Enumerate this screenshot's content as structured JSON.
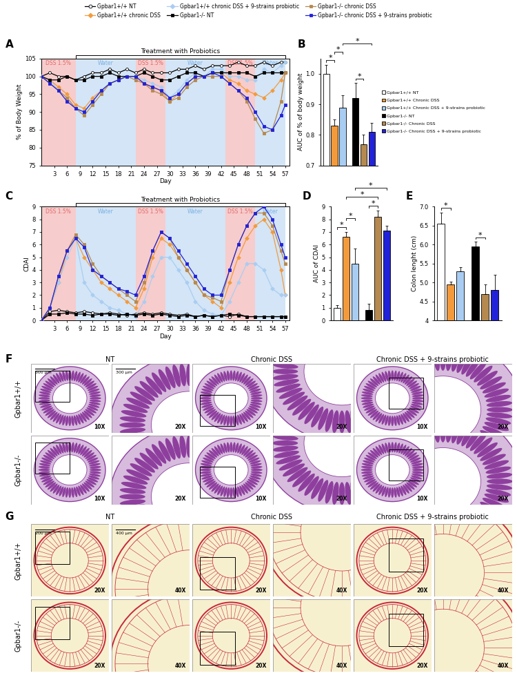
{
  "chart_data": [
    {
      "panel": "A",
      "type": "line",
      "xlabel": "Day",
      "ylabel": "% of Body Weight",
      "x": [
        0,
        2,
        4,
        6,
        8,
        10,
        12,
        14,
        16,
        18,
        20,
        22,
        24,
        26,
        28,
        30,
        32,
        34,
        36,
        38,
        40,
        42,
        44,
        46,
        48,
        50,
        52,
        54,
        56,
        57
      ],
      "xlim": [
        0,
        58
      ],
      "xticks": [
        3,
        6,
        9,
        12,
        15,
        18,
        21,
        24,
        27,
        30,
        33,
        36,
        39,
        42,
        45,
        48,
        51,
        54,
        57
      ],
      "ylim": [
        75,
        105
      ],
      "yticks": [
        75,
        80,
        85,
        90,
        95,
        100,
        105
      ],
      "legend": "top",
      "phases": [
        {
          "label": "DSS 1.5%",
          "start": 0,
          "end": 8,
          "color": "#f6cccc"
        },
        {
          "label": "Water",
          "start": 8,
          "end": 22,
          "color": "#d3e5f6"
        },
        {
          "label": "DSS 1.5%",
          "start": 22,
          "end": 29,
          "color": "#f6cccc"
        },
        {
          "label": "Water",
          "start": 29,
          "end": 43,
          "color": "#d3e5f6"
        },
        {
          "label": "DSS 1.5%",
          "start": 43,
          "end": 50,
          "color": "#f6cccc"
        },
        {
          "label": "Water",
          "start": 50,
          "end": 57,
          "color": "#d3e5f6"
        }
      ],
      "bracket": {
        "label": "Treatment with Probiotics",
        "start": 8,
        "end": 57
      },
      "series": [
        {
          "name": "Gpbar1+/+ NT",
          "color": "#ffffff",
          "marker": "circle",
          "values": [
            100,
            101,
            100,
            100,
            99,
            100,
            101,
            101,
            102,
            101,
            102,
            101,
            102,
            101,
            101,
            101,
            102,
            102,
            103,
            102,
            103,
            103,
            103,
            104,
            103,
            103,
            104,
            103,
            104,
            104
          ]
        },
        {
          "name": "Gpbar1+/+ chronic DSS",
          "color": "#f39a3c",
          "marker": "diamond",
          "values": [
            100,
            99,
            97,
            95,
            92,
            91,
            94,
            96,
            98,
            99,
            100,
            100,
            98,
            97,
            96,
            93,
            95,
            98,
            100,
            100,
            101,
            101,
            99,
            98,
            96,
            95,
            94,
            96,
            99,
            101
          ]
        },
        {
          "name": "Gpbar1+/+ chronic DSS + 9-strains probiotic",
          "color": "#a9cdf2",
          "marker": "diamond",
          "values": [
            100,
            99,
            96,
            94,
            91,
            90,
            93,
            96,
            98,
            99,
            100,
            100,
            99,
            98,
            97,
            94,
            96,
            99,
            101,
            100,
            102,
            102,
            100,
            100,
            99,
            99,
            102,
            101,
            103,
            104
          ]
        },
        {
          "name": "Gpbar1-/- NT",
          "color": "#000000",
          "marker": "square",
          "values": [
            100,
            99,
            99,
            100,
            99,
            99,
            100,
            100,
            101,
            100,
            100,
            100,
            101,
            100,
            99,
            99,
            100,
            101,
            101,
            100,
            101,
            101,
            101,
            101,
            101,
            100,
            101,
            101,
            101,
            101
          ]
        },
        {
          "name": "Gpbar1-/- chronic DSS",
          "color": "#b5894f",
          "marker": "square",
          "values": [
            100,
            98,
            96,
            94,
            91,
            89,
            92,
            95,
            98,
            99,
            100,
            99,
            98,
            96,
            95,
            93,
            94,
            97,
            99,
            100,
            100,
            100,
            98,
            96,
            93,
            88,
            84,
            85,
            93,
            101
          ]
        },
        {
          "name": "Gpbar1-/- chronic DSS + 9-strains probiotic",
          "color": "#2222d8",
          "marker": "square",
          "values": [
            100,
            98,
            96,
            93,
            91,
            90,
            93,
            96,
            98,
            99,
            100,
            100,
            98,
            97,
            96,
            94,
            95,
            98,
            100,
            100,
            101,
            100,
            98,
            96,
            94,
            90,
            86,
            85,
            89,
            92
          ]
        }
      ]
    },
    {
      "panel": "B",
      "type": "bar",
      "ylabel": "AUC of % of body weight",
      "categories": [
        "Gpbar1+/+ NT",
        "Gpbar1+/+ Chronic DSS",
        "Gpbar1+/+ Chronic DSS + 9-strains probiotic",
        "Gpbar1-/- NT",
        "Gpbar1-/- Chronic DSS",
        "Gpbar1-/- Chronic DSS + 9-strains probiotic"
      ],
      "values": [
        1.0,
        0.83,
        0.89,
        0.92,
        0.77,
        0.81
      ],
      "errors": [
        0.03,
        0.02,
        0.04,
        0.05,
        0.03,
        0.03
      ],
      "colors": [
        "#ffffff",
        "#f39a3c",
        "#a9cdf2",
        "#000000",
        "#b5894f",
        "#2222d8"
      ],
      "ylim": [
        0.7,
        1.05
      ],
      "yticks": [
        0.7,
        0.8,
        0.9,
        1.0
      ],
      "tick_labels": "y",
      "legend": "right",
      "significance": [
        {
          "between": [
            0,
            1
          ],
          "label": "*"
        },
        {
          "between": [
            1,
            2
          ],
          "label": "*"
        },
        {
          "between": [
            2,
            5
          ],
          "label": "*"
        },
        {
          "between": [
            3,
            4
          ],
          "label": "*"
        }
      ]
    },
    {
      "panel": "C",
      "type": "line",
      "xlabel": "Day",
      "ylabel": "CDAI",
      "x": [
        0,
        2,
        4,
        6,
        8,
        10,
        12,
        14,
        16,
        18,
        20,
        22,
        24,
        26,
        28,
        30,
        32,
        34,
        36,
        38,
        40,
        42,
        44,
        46,
        48,
        50,
        52,
        54,
        56,
        57
      ],
      "xlim": [
        0,
        58
      ],
      "xticks": [
        3,
        6,
        9,
        12,
        15,
        18,
        21,
        24,
        27,
        30,
        33,
        36,
        39,
        42,
        45,
        48,
        51,
        54,
        57
      ],
      "ylim": [
        0,
        9
      ],
      "yticks": [
        0,
        1,
        2,
        3,
        4,
        5,
        6,
        7,
        8,
        9
      ],
      "phases": [
        {
          "label": "DSS 1.5%",
          "start": 0,
          "end": 8,
          "color": "#f6cccc"
        },
        {
          "label": "Water",
          "start": 8,
          "end": 22,
          "color": "#d3e5f6"
        },
        {
          "label": "DSS 1.5%",
          "start": 22,
          "end": 29,
          "color": "#f6cccc"
        },
        {
          "label": "Water",
          "start": 29,
          "end": 43,
          "color": "#d3e5f6"
        },
        {
          "label": "DSS 1.5%",
          "start": 43,
          "end": 50,
          "color": "#f6cccc"
        },
        {
          "label": "Water",
          "start": 50,
          "end": 57,
          "color": "#d3e5f6"
        }
      ],
      "bracket": {
        "label": "Treatment with Probiotics",
        "start": 8,
        "end": 57
      },
      "series": [
        {
          "name": "Gpbar1+/+ NT",
          "color": "#ffffff",
          "marker": "circle",
          "values": [
            0,
            0.7,
            0.8,
            0.7,
            0.6,
            0.7,
            0.6,
            0.5,
            0.6,
            0.5,
            0.4,
            0.5,
            0.6,
            0.5,
            0.6,
            0.5,
            0.4,
            0.5,
            0.3,
            0.4,
            0.3,
            0.4,
            0.3,
            0.5,
            0.3,
            0.3,
            0.3,
            0.3,
            0.3,
            0.3
          ]
        },
        {
          "name": "Gpbar1+/+ chronic DSS",
          "color": "#f39a3c",
          "marker": "diamond",
          "values": [
            0,
            1,
            3,
            5.5,
            6.5,
            5,
            4,
            3,
            2.5,
            2,
            1.5,
            1,
            2.5,
            5,
            6.5,
            6,
            5,
            4,
            3,
            2,
            1.5,
            1,
            3,
            5,
            6.5,
            7.5,
            8,
            7,
            4,
            2
          ]
        },
        {
          "name": "Gpbar1+/+ chronic DSS + 9-strains probiotic",
          "color": "#a9cdf2",
          "marker": "diamond",
          "values": [
            0,
            1,
            3,
            5,
            6.5,
            3,
            2,
            1.5,
            1,
            0.8,
            0.5,
            0.3,
            1.5,
            3.5,
            5,
            5,
            4,
            3,
            1.5,
            0.8,
            0.5,
            0.4,
            1.5,
            3,
            4.5,
            4.5,
            4,
            2.5,
            2,
            2
          ]
        },
        {
          "name": "Gpbar1-/- NT",
          "color": "#000000",
          "marker": "square",
          "values": [
            0,
            0.5,
            0.5,
            0.6,
            0.5,
            0.5,
            0.4,
            0.5,
            0.5,
            0.4,
            0.5,
            0.4,
            0.5,
            0.4,
            0.5,
            0.4,
            0.3,
            0.4,
            0.3,
            0.4,
            0.3,
            0.4,
            0.5,
            0.4,
            0.3,
            0.3,
            0.3,
            0.3,
            0.3,
            0.3
          ]
        },
        {
          "name": "Gpbar1-/- chronic DSS",
          "color": "#b5894f",
          "marker": "square",
          "values": [
            0,
            1,
            3.5,
            5.5,
            6.8,
            6,
            4.5,
            3.5,
            3,
            2.5,
            2,
            1.5,
            3,
            5.5,
            7,
            6.5,
            5,
            4,
            3,
            2,
            1.8,
            1.5,
            4,
            6,
            7.5,
            8.5,
            8.5,
            7.5,
            5.5,
            4.5
          ]
        },
        {
          "name": "Gpbar1-/- chronic DSS + 9-strains probiotic",
          "color": "#2222d8",
          "marker": "square",
          "values": [
            0,
            1,
            3.5,
            5.5,
            6.5,
            5.8,
            4,
            3.5,
            3,
            2.5,
            2.3,
            2,
            3.5,
            5.5,
            7,
            6.5,
            5.5,
            4.5,
            3.5,
            2.5,
            2,
            2,
            4,
            6,
            7.5,
            8.5,
            9,
            8,
            6,
            5
          ]
        }
      ]
    },
    {
      "panel": "D",
      "type": "bar",
      "ylabel": "AUC of CDAI",
      "categories": [
        null,
        null,
        null,
        null,
        null,
        null
      ],
      "values": [
        1.0,
        6.6,
        4.5,
        0.8,
        8.2,
        7.1
      ],
      "errors": [
        0.2,
        0.4,
        1.2,
        0.5,
        0.5,
        0.4
      ],
      "colors": [
        "#ffffff",
        "#f39a3c",
        "#a9cdf2",
        "#000000",
        "#b5894f",
        "#2222d8"
      ],
      "ylim": [
        0,
        9
      ],
      "yticks": [
        0,
        1,
        2,
        3,
        4,
        5,
        6,
        7,
        8,
        9
      ],
      "tick_labels": "y",
      "significance": [
        {
          "between": [
            0,
            1
          ],
          "label": "*"
        },
        {
          "between": [
            1,
            2
          ],
          "label": "*"
        },
        {
          "between": [
            1,
            4
          ],
          "label": "*"
        },
        {
          "between": [
            2,
            5
          ],
          "label": "*"
        },
        {
          "between": [
            3,
            4
          ],
          "label": "*"
        }
      ]
    },
    {
      "panel": "E",
      "type": "bar",
      "ylabel": "Colon lenght (cm)",
      "categories": [
        null,
        null,
        null,
        null,
        null,
        null
      ],
      "values": [
        6.55,
        4.95,
        5.3,
        5.95,
        4.7,
        4.8
      ],
      "errors": [
        0.3,
        0.08,
        0.1,
        0.12,
        0.25,
        0.4
      ],
      "colors": [
        "#ffffff",
        "#f39a3c",
        "#a9cdf2",
        "#000000",
        "#b5894f",
        "#2222d8"
      ],
      "ylim": [
        4,
        7.0
      ],
      "yticks": [
        4,
        4.5,
        5.0,
        5.5,
        6.0,
        6.5,
        7.0
      ],
      "tick_labels": "y",
      "significance": [
        {
          "between": [
            0,
            1
          ],
          "label": "*"
        },
        {
          "between": [
            3,
            4
          ],
          "label": "*"
        }
      ]
    }
  ],
  "image_panels": [
    {
      "panel": "F",
      "columns": [
        "NT",
        "Chronic DSS",
        "Chronic DSS + 9-strains probiotic"
      ],
      "rows": [
        "Gpbar1+/+",
        "Gpbar1-/-"
      ],
      "magnifications": [
        "10X",
        "20X"
      ],
      "scale_bars": [
        "600 μm",
        "300 μm"
      ],
      "colors": [
        "#8e3f9e",
        "#ffffff"
      ]
    },
    {
      "panel": "G",
      "columns": [
        "NT",
        "Chronic DSS",
        "Chronic DSS + 9-strains probiotic"
      ],
      "rows": [
        "Gpbar1+/+",
        "Gpbar1-/-"
      ],
      "magnifications": [
        "20X",
        "40X"
      ],
      "scale_bars": [
        "200 μm",
        "400 μm"
      ],
      "colors": [
        "#c8283c",
        "#f7f0cf"
      ]
    }
  ]
}
